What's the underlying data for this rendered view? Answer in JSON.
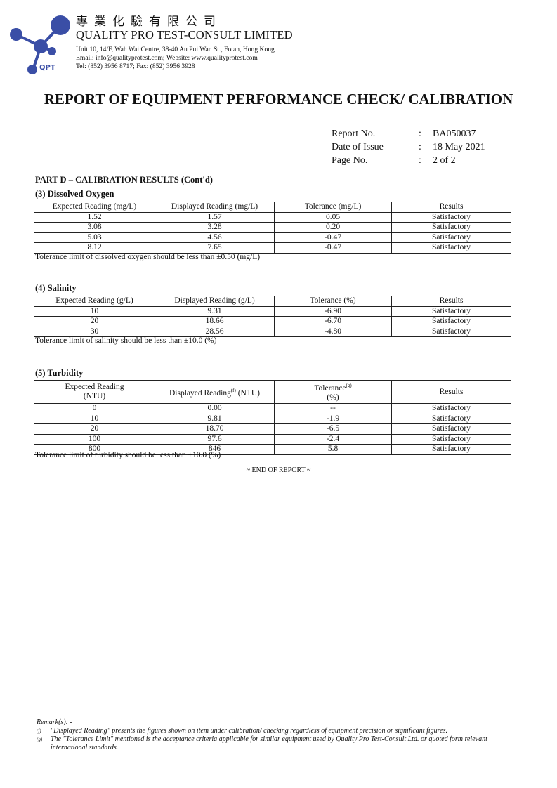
{
  "header": {
    "logo_text": "QPT",
    "company_chinese": "專業化驗有限公司",
    "company_name": "QUALITY PRO TEST-CONSULT LIMITED",
    "address": "Unit 10, 14/F, Wah Wai Centre, 38-40 Au Pui Wan St., Fotan, Hong Kong",
    "contact": "Email: info@qualityprotest.com; Website: www.qualityprotest.com",
    "phone": "Tel: (852) 3956 8717; Fax: (852) 3956 3928",
    "brand_color": "#3a4ea6"
  },
  "title": "REPORT OF EQUIPMENT PERFORMANCE CHECK/ CALIBRATION",
  "meta": [
    {
      "label": "Report No.",
      "value": "BA050037"
    },
    {
      "label": "Date of Issue",
      "value": "18 May 2021"
    },
    {
      "label": "Page No.",
      "value": "2 of 2"
    }
  ],
  "part_title": "PART D – CALIBRATION RESULTS (Cont'd)",
  "do": {
    "title": "(3)  Dissolved Oxygen",
    "headers": [
      "Expected Reading (mg/L)",
      "Displayed Reading (mg/L)",
      "Tolerance (mg/L)",
      "Results"
    ],
    "rows": [
      [
        "1.52",
        "1.57",
        "0.05",
        "Satisfactory"
      ],
      [
        "3.08",
        "3.28",
        "0.20",
        "Satisfactory"
      ],
      [
        "5.03",
        "4.56",
        "-0.47",
        "Satisfactory"
      ],
      [
        "8.12",
        "7.65",
        "-0.47",
        "Satisfactory"
      ]
    ],
    "note": "Tolerance limit of dissolved oxygen should be less than ±0.50 (mg/L)"
  },
  "salinity": {
    "title": "(4)  Salinity",
    "headers": [
      "Expected Reading (g/L)",
      "Displayed Reading (g/L)",
      "Tolerance (%)",
      "Results"
    ],
    "rows": [
      [
        "10",
        "9.31",
        "-6.90",
        "Satisfactory"
      ],
      [
        "20",
        "18.66",
        "-6.70",
        "Satisfactory"
      ],
      [
        "30",
        "28.56",
        "-4.80",
        "Satisfactory"
      ]
    ],
    "note": "Tolerance limit of salinity should be less than ±10.0 (%)"
  },
  "turbidity": {
    "title": "(5)  Turbidity",
    "h1a": "Expected Reading",
    "h1b": "(NTU)",
    "h2a": "Displayed Reading",
    "h2sup": "(f)",
    "h2b": " (NTU)",
    "h3a": "Tolerance",
    "h3sup": "(g)",
    "h3b": "(%)",
    "h4": "Results",
    "rows": [
      [
        "0",
        "0.00",
        "--",
        "Satisfactory"
      ],
      [
        "10",
        "9.81",
        "-1.9",
        "Satisfactory"
      ],
      [
        "20",
        "18.70",
        "-6.5",
        "Satisfactory"
      ],
      [
        "100",
        "97.6",
        "-2.4",
        "Satisfactory"
      ],
      [
        "800",
        "846",
        "5.8",
        "Satisfactory"
      ]
    ],
    "note": "Tolerance limit of turbidity should be less than ±10.0 (%)"
  },
  "end": "~ END OF REPORT ~",
  "remarks": {
    "heading": "Remark(s): -",
    "items": [
      {
        "mark": "(f)",
        "text": "\"Displayed Reading\" presents the figures shown on item under calibration/ checking regardless of equipment precision or significant figures."
      },
      {
        "mark": "(g)",
        "text": "The \"Tolerance Limit\" mentioned is the acceptance criteria applicable for similar equipment used by Quality Pro Test-Consult Ltd. or quoted form relevant international standards."
      }
    ]
  }
}
